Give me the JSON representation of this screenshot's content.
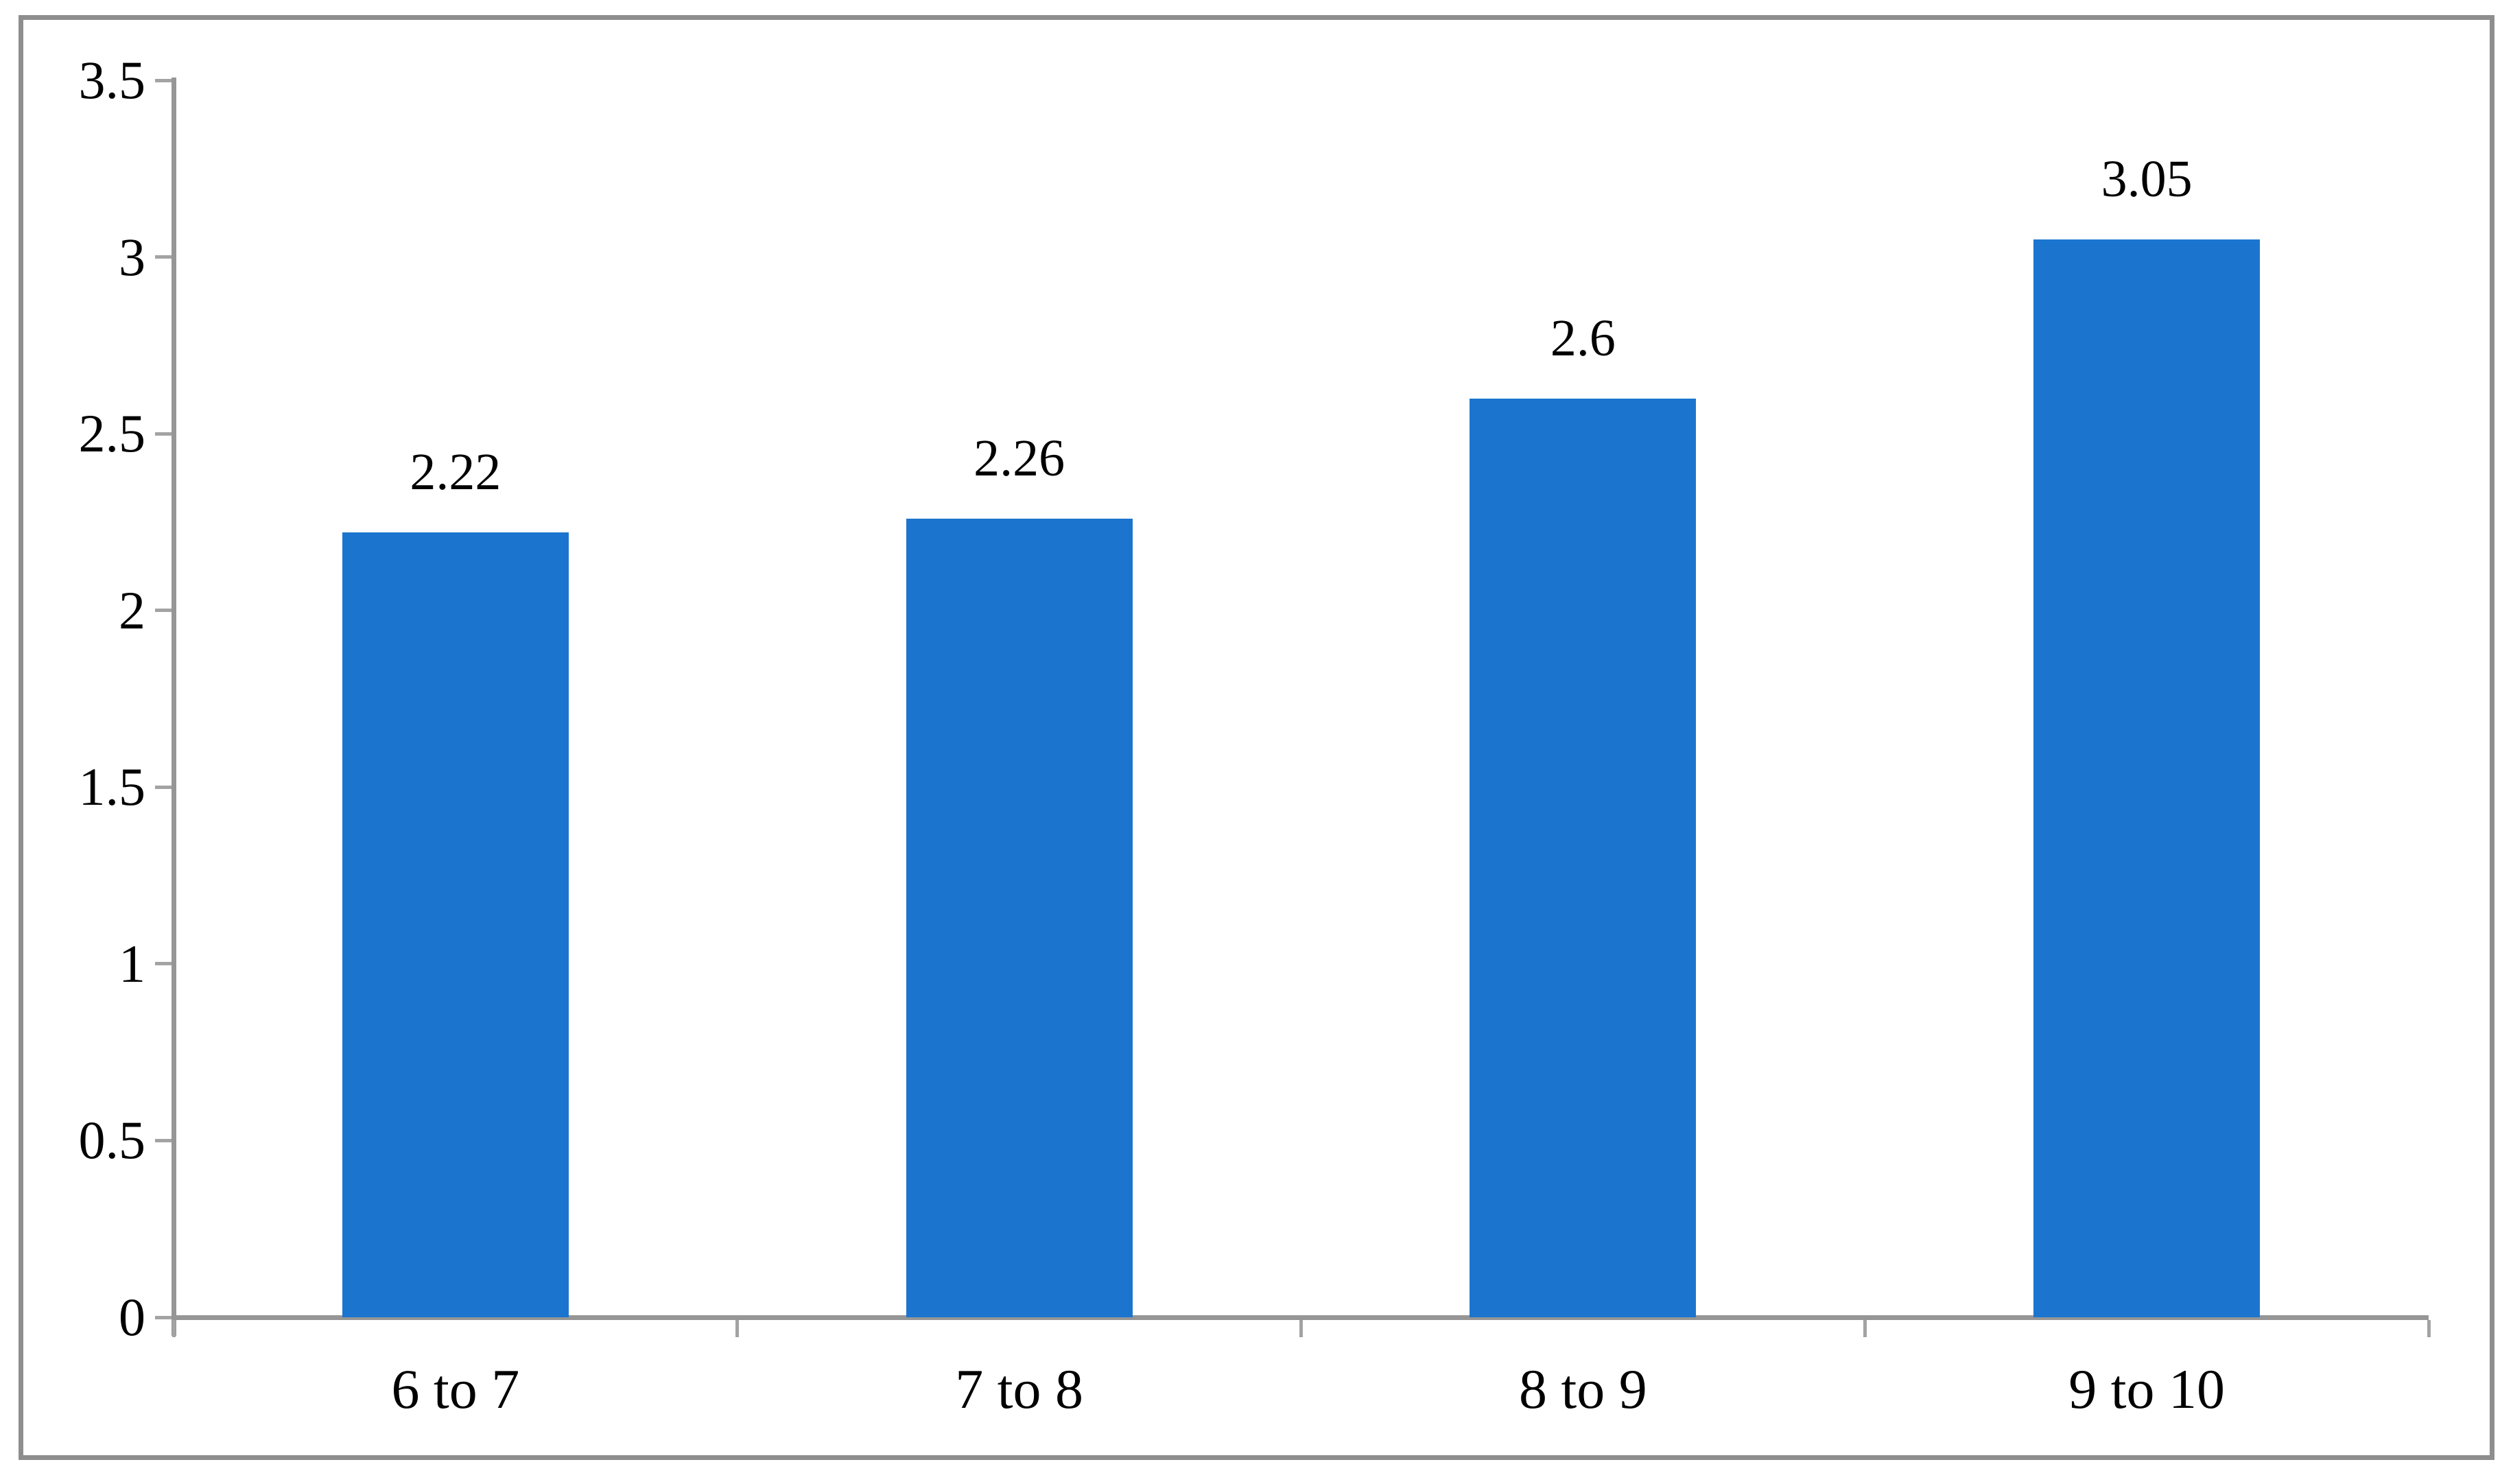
{
  "chart_data": {
    "type": "bar",
    "title": "",
    "xlabel": "",
    "ylabel": "",
    "categories": [
      "6 to 7",
      "7 to 8",
      "8 to 9",
      "9 to 10"
    ],
    "values": [
      2.22,
      2.26,
      2.6,
      3.05
    ],
    "data_labels": [
      "2.22",
      "2.26",
      "2.6",
      "3.05"
    ],
    "ytick_labels": [
      "3.5",
      "3",
      "2.5",
      "2",
      "1.5",
      "1",
      "0.5",
      "0"
    ],
    "ytick_values": [
      3.5,
      3,
      2.5,
      2,
      1.5,
      1,
      0.5,
      0
    ],
    "ylim": [
      0,
      3.5
    ],
    "grid": false,
    "legend": null,
    "bar_color": "#1B75CE",
    "axis_color": "#969696",
    "tick_color": "#A3A3A3",
    "frame_border_color": "#8E8E8E",
    "text_color": "#000000",
    "background_color": "#FFFFFF"
  }
}
